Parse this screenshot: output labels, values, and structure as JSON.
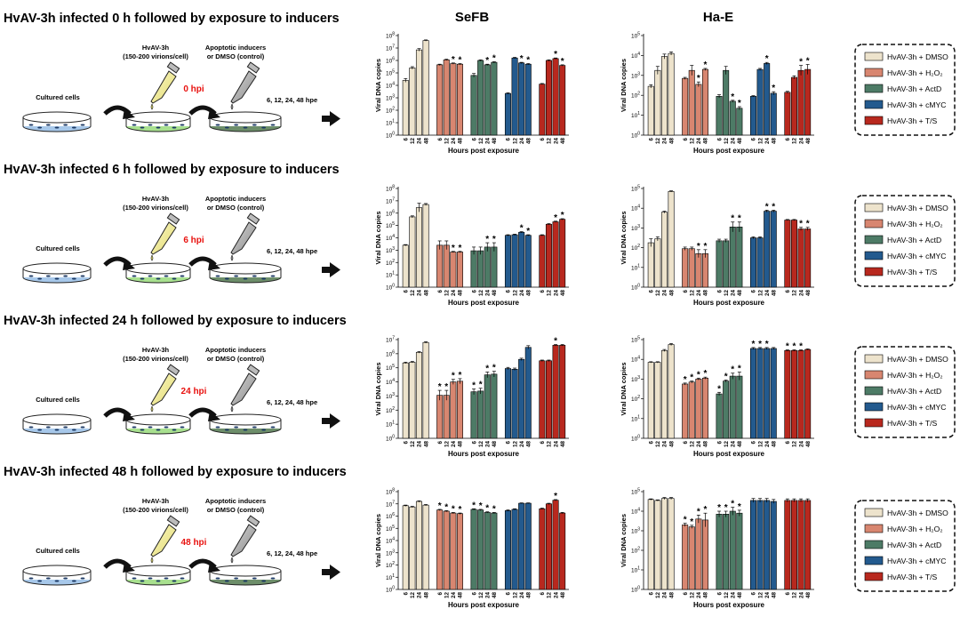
{
  "column_titles": {
    "left": "SeFB",
    "right": "Ha-E"
  },
  "ylabel": "Viral DNA copies",
  "xlabel": "Hours post exposure",
  "hours": [
    "6",
    "12",
    "24",
    "48"
  ],
  "diagram": {
    "cultured_cells": "Cultured cells",
    "virus_name": "HvAV-3h",
    "virus_dose": "(150-200 virions/cell)",
    "inducers_line1": "Apoptotic inducers",
    "inducers_line2": "or DMSO (control)",
    "timepoints": "6, 12, 24, 48 hpe"
  },
  "legend": [
    {
      "label": "HvAV-3h + DMSO",
      "color": "#ede3cc"
    },
    {
      "label": "HvAV-3h + H₂O₂",
      "color": "#d88670"
    },
    {
      "label": "HvAV-3h + ActD",
      "color": "#4d7b66"
    },
    {
      "label": "HvAV-3h + cMYC",
      "color": "#235a8e"
    },
    {
      "label": "HvAV-3h + T/S",
      "color": "#b8281e"
    }
  ],
  "treatment_colors": [
    "#ede3cc",
    "#d88670",
    "#4d7b66",
    "#235a8e",
    "#b8281e"
  ],
  "colors": {
    "hpi_text": "#e8110e"
  },
  "rows": [
    {
      "title": "HvAV-3h infected 0 h followed by exposure to inducers",
      "hpi": "0 hpi"
    },
    {
      "title": "HvAV-3h infected 6 h followed by exposure to inducers",
      "hpi": "6 hpi"
    },
    {
      "title": "HvAV-3h infected 24 h followed by exposure to inducers",
      "hpi": "24 hpi"
    },
    {
      "title": "HvAV-3h infected 48 h followed by exposure to inducers",
      "hpi": "48 hpi"
    }
  ],
  "chart_data": [
    {
      "type": "bar",
      "row": 0,
      "col": "SeFB",
      "ylog": true,
      "ylim_exp": [
        0,
        8
      ],
      "categories": [
        "6",
        "12",
        "24",
        "48"
      ],
      "series": [
        {
          "values": [
            4.4,
            5.4,
            6.85,
            7.6
          ],
          "err": [
            0.15,
            0.1,
            0.1,
            0.05
          ],
          "stars": [
            0,
            0,
            0,
            0
          ]
        },
        {
          "values": [
            5.65,
            6.05,
            5.75,
            5.7
          ],
          "err": [
            0.05,
            0.05,
            0.05,
            0.05
          ],
          "stars": [
            0,
            0,
            1,
            1
          ]
        },
        {
          "values": [
            4.8,
            6.0,
            5.65,
            5.85
          ],
          "err": [
            0.15,
            0.05,
            0.05,
            0.05
          ],
          "stars": [
            0,
            0,
            1,
            1
          ]
        },
        {
          "values": [
            3.35,
            6.2,
            5.8,
            5.7
          ],
          "err": [
            0.05,
            0.05,
            0.05,
            0.05
          ],
          "stars": [
            0,
            0,
            1,
            1
          ]
        },
        {
          "values": [
            4.1,
            6.0,
            6.15,
            5.6
          ],
          "err": [
            0.05,
            0.05,
            0.05,
            0.05
          ],
          "stars": [
            0,
            0,
            1,
            1
          ]
        }
      ]
    },
    {
      "type": "bar",
      "row": 0,
      "col": "Ha-E",
      "ylog": true,
      "ylim_exp": [
        0,
        5
      ],
      "categories": [
        "6",
        "12",
        "24",
        "48"
      ],
      "series": [
        {
          "values": [
            2.45,
            3.25,
            3.95,
            4.1
          ],
          "err": [
            0.08,
            0.2,
            0.12,
            0.08
          ],
          "stars": [
            0,
            0,
            0,
            0
          ]
        },
        {
          "values": [
            2.85,
            3.25,
            2.55,
            3.3
          ],
          "err": [
            0.05,
            0.25,
            0.12,
            0.05
          ],
          "stars": [
            0,
            0,
            1,
            1
          ]
        },
        {
          "values": [
            1.95,
            3.25,
            1.7,
            1.35
          ],
          "err": [
            0.08,
            0.2,
            0.05,
            0.08
          ],
          "stars": [
            0,
            0,
            1,
            1
          ]
        },
        {
          "values": [
            1.95,
            3.3,
            3.6,
            2.1
          ],
          "err": [
            0.03,
            0.05,
            0.05,
            0.08
          ],
          "stars": [
            0,
            0,
            1,
            1
          ]
        },
        {
          "values": [
            2.15,
            2.9,
            3.25,
            3.3
          ],
          "err": [
            0.05,
            0.08,
            0.25,
            0.25
          ],
          "stars": [
            0,
            0,
            1,
            1
          ]
        }
      ]
    },
    {
      "type": "bar",
      "row": 1,
      "col": "SeFB",
      "ylog": true,
      "ylim_exp": [
        0,
        8
      ],
      "categories": [
        "6",
        "12",
        "24",
        "48"
      ],
      "series": [
        {
          "values": [
            3.4,
            5.7,
            6.45,
            6.7
          ],
          "err": [
            0.05,
            0.08,
            0.35,
            0.08
          ],
          "stars": [
            0,
            0,
            0,
            0
          ]
        },
        {
          "values": [
            3.4,
            3.4,
            2.85,
            2.85
          ],
          "err": [
            0.35,
            0.35,
            0.05,
            0.05
          ],
          "stars": [
            0,
            0,
            1,
            1
          ]
        },
        {
          "values": [
            2.95,
            2.95,
            3.25,
            3.25
          ],
          "err": [
            0.3,
            0.3,
            0.35,
            0.35
          ],
          "stars": [
            0,
            0,
            1,
            1
          ]
        },
        {
          "values": [
            4.2,
            4.25,
            4.45,
            4.2
          ],
          "err": [
            0.05,
            0.05,
            0.05,
            0.05
          ],
          "stars": [
            0,
            0,
            1,
            1
          ]
        },
        {
          "values": [
            4.2,
            5.1,
            5.3,
            5.5
          ],
          "err": [
            0.05,
            0.05,
            0.05,
            0.05
          ],
          "stars": [
            0,
            0,
            1,
            1
          ]
        }
      ]
    },
    {
      "type": "bar",
      "row": 1,
      "col": "Ha-E",
      "ylog": true,
      "ylim_exp": [
        0,
        5
      ],
      "categories": [
        "6",
        "12",
        "24",
        "48"
      ],
      "series": [
        {
          "values": [
            2.25,
            2.45,
            3.8,
            4.85
          ],
          "err": [
            0.2,
            0.1,
            0.05,
            0.03
          ],
          "stars": [
            0,
            0,
            0,
            0
          ]
        },
        {
          "values": [
            1.95,
            1.95,
            1.7,
            1.7
          ],
          "err": [
            0.08,
            0.08,
            0.2,
            0.2
          ],
          "stars": [
            0,
            0,
            1,
            1
          ]
        },
        {
          "values": [
            2.35,
            2.35,
            3.05,
            3.05
          ],
          "err": [
            0.08,
            0.08,
            0.25,
            0.25
          ],
          "stars": [
            0,
            0,
            1,
            1
          ]
        },
        {
          "values": [
            2.5,
            2.5,
            3.85,
            3.85
          ],
          "err": [
            0.05,
            0.05,
            0.05,
            0.05
          ],
          "stars": [
            0,
            0,
            1,
            1
          ]
        },
        {
          "values": [
            3.4,
            3.4,
            2.95,
            2.95
          ],
          "err": [
            0.03,
            0.03,
            0.08,
            0.08
          ],
          "stars": [
            0,
            0,
            1,
            1
          ]
        }
      ]
    },
    {
      "type": "bar",
      "row": 2,
      "col": "SeFB",
      "ylog": true,
      "ylim_exp": [
        0,
        7
      ],
      "categories": [
        "6",
        "12",
        "24",
        "48"
      ],
      "series": [
        {
          "values": [
            5.35,
            5.4,
            6.1,
            6.8
          ],
          "err": [
            0.05,
            0.05,
            0.05,
            0.05
          ],
          "stars": [
            0,
            0,
            0,
            0
          ]
        },
        {
          "values": [
            3.05,
            3.05,
            4.0,
            4.05
          ],
          "err": [
            0.35,
            0.35,
            0.18,
            0.18
          ],
          "stars": [
            1,
            1,
            1,
            1
          ]
        },
        {
          "values": [
            3.3,
            3.35,
            4.5,
            4.55
          ],
          "err": [
            0.2,
            0.2,
            0.2,
            0.2
          ],
          "stars": [
            1,
            1,
            1,
            1
          ]
        },
        {
          "values": [
            4.95,
            4.9,
            5.6,
            6.45
          ],
          "err": [
            0.08,
            0.08,
            0.08,
            0.12
          ],
          "stars": [
            0,
            0,
            0,
            0
          ]
        },
        {
          "values": [
            5.5,
            5.5,
            6.6,
            6.6
          ],
          "err": [
            0.05,
            0.05,
            0.05,
            0.05
          ],
          "stars": [
            0,
            0,
            1,
            0
          ]
        }
      ]
    },
    {
      "type": "bar",
      "row": 2,
      "col": "Ha-E",
      "ylog": true,
      "ylim_exp": [
        0,
        5
      ],
      "categories": [
        "6",
        "12",
        "24",
        "48"
      ],
      "series": [
        {
          "values": [
            3.85,
            3.85,
            4.45,
            4.75
          ],
          "err": [
            0.03,
            0.03,
            0.05,
            0.05
          ],
          "stars": [
            0,
            0,
            0,
            0
          ]
        },
        {
          "values": [
            2.75,
            2.85,
            3.0,
            3.05
          ],
          "err": [
            0.05,
            0.05,
            0.05,
            0.05
          ],
          "stars": [
            1,
            1,
            1,
            1
          ]
        },
        {
          "values": [
            2.25,
            2.9,
            3.15,
            3.15
          ],
          "err": [
            0.08,
            0.05,
            0.15,
            0.2
          ],
          "stars": [
            1,
            1,
            1,
            1
          ]
        },
        {
          "values": [
            4.55,
            4.55,
            4.55,
            4.55
          ],
          "err": [
            0.05,
            0.05,
            0.05,
            0.05
          ],
          "stars": [
            1,
            1,
            1,
            0
          ]
        },
        {
          "values": [
            4.45,
            4.45,
            4.45,
            4.5
          ],
          "err": [
            0.03,
            0.03,
            0.03,
            0.03
          ],
          "stars": [
            1,
            1,
            1,
            0
          ]
        }
      ]
    },
    {
      "type": "bar",
      "row": 3,
      "col": "SeFB",
      "ylog": true,
      "ylim_exp": [
        0,
        8
      ],
      "categories": [
        "6",
        "12",
        "24",
        "48"
      ],
      "series": [
        {
          "values": [
            6.85,
            6.75,
            7.2,
            6.9
          ],
          "err": [
            0.05,
            0.05,
            0.05,
            0.05
          ],
          "stars": [
            0,
            0,
            0,
            0
          ]
        },
        {
          "values": [
            6.5,
            6.4,
            6.25,
            6.2
          ],
          "err": [
            0.05,
            0.05,
            0.05,
            0.05
          ],
          "stars": [
            1,
            1,
            1,
            1
          ]
        },
        {
          "values": [
            6.55,
            6.5,
            6.3,
            6.25
          ],
          "err": [
            0.05,
            0.05,
            0.05,
            0.05
          ],
          "stars": [
            1,
            1,
            1,
            1
          ]
        },
        {
          "values": [
            6.45,
            6.55,
            7.05,
            7.05
          ],
          "err": [
            0.05,
            0.05,
            0.03,
            0.03
          ],
          "stars": [
            0,
            0,
            0,
            0
          ]
        },
        {
          "values": [
            6.6,
            7.0,
            7.3,
            6.25
          ],
          "err": [
            0.05,
            0.05,
            0.05,
            0.05
          ],
          "stars": [
            0,
            0,
            1,
            0
          ]
        }
      ]
    },
    {
      "type": "bar",
      "row": 3,
      "col": "Ha-E",
      "ylog": true,
      "ylim_exp": [
        0,
        5
      ],
      "categories": [
        "6",
        "12",
        "24",
        "48"
      ],
      "series": [
        {
          "values": [
            4.6,
            4.55,
            4.65,
            4.65
          ],
          "err": [
            0.03,
            0.03,
            0.05,
            0.05
          ],
          "stars": [
            0,
            0,
            0,
            0
          ]
        },
        {
          "values": [
            3.3,
            3.2,
            3.6,
            3.55
          ],
          "err": [
            0.08,
            0.08,
            0.2,
            0.35
          ],
          "stars": [
            1,
            1,
            1,
            1
          ]
        },
        {
          "values": [
            3.85,
            3.85,
            4.0,
            3.9
          ],
          "err": [
            0.15,
            0.15,
            0.2,
            0.15
          ],
          "stars": [
            1,
            1,
            1,
            1
          ]
        },
        {
          "values": [
            4.55,
            4.55,
            4.55,
            4.5
          ],
          "err": [
            0.1,
            0.1,
            0.1,
            0.1
          ],
          "stars": [
            0,
            0,
            0,
            0
          ]
        },
        {
          "values": [
            4.55,
            4.55,
            4.55,
            4.55
          ],
          "err": [
            0.08,
            0.08,
            0.08,
            0.08
          ],
          "stars": [
            0,
            0,
            0,
            0
          ]
        }
      ]
    }
  ]
}
